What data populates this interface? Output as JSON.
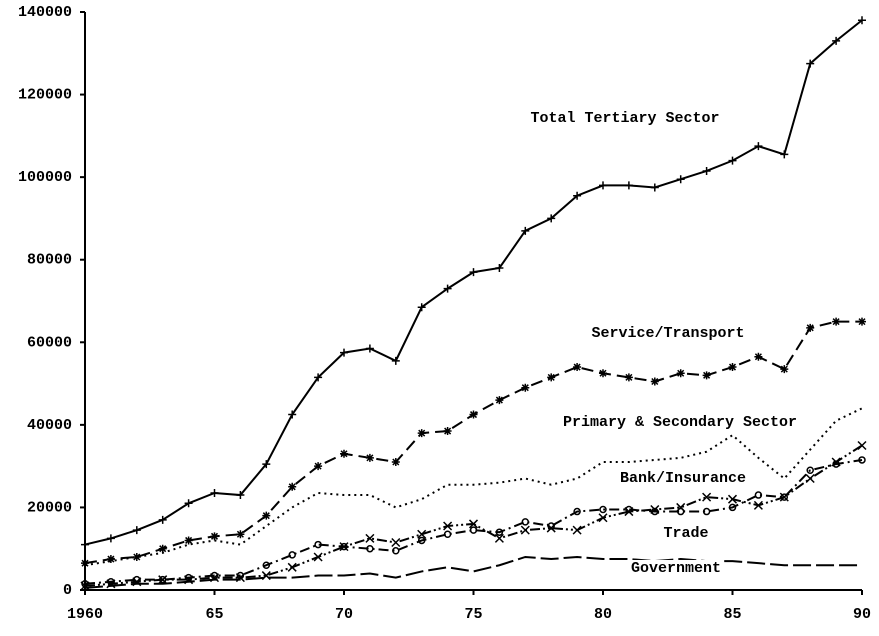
{
  "chart_data": {
    "type": "line",
    "x": [
      1960,
      1961,
      1962,
      1963,
      1964,
      1965,
      1966,
      1967,
      1968,
      1969,
      1970,
      1971,
      1972,
      1973,
      1974,
      1975,
      1976,
      1977,
      1978,
      1979,
      1980,
      1981,
      1982,
      1983,
      1984,
      1985,
      1986,
      1987,
      1988,
      1989,
      1990
    ],
    "series": [
      {
        "name": "Total Tertiary Sector",
        "color": "#000000",
        "style": "solid",
        "marker": "plus",
        "values": [
          11000,
          12500,
          14500,
          17000,
          21000,
          23500,
          23000,
          30500,
          42500,
          51500,
          57500,
          58500,
          55500,
          68500,
          73000,
          77000,
          78000,
          87000,
          90000,
          95500,
          98000,
          98000,
          97500,
          99500,
          101500,
          104000,
          107500,
          105500,
          127500,
          133000,
          138000
        ]
      },
      {
        "name": "Service/Transport",
        "color": "#000000",
        "style": "dashed",
        "marker": "star",
        "values": [
          6500,
          7500,
          8000,
          10000,
          12000,
          13000,
          13500,
          18000,
          25000,
          30000,
          33000,
          32000,
          31000,
          38000,
          38500,
          42500,
          46000,
          49000,
          51500,
          54000,
          52500,
          51500,
          50500,
          52500,
          52000,
          54000,
          56500,
          53500,
          63500,
          65000,
          65000
        ]
      },
      {
        "name": "Primary & Secondary Sector",
        "color": "#000000",
        "style": "dotted",
        "marker": "none",
        "values": [
          6000,
          7000,
          8000,
          9000,
          11000,
          12000,
          11000,
          15500,
          20000,
          23500,
          23000,
          23000,
          20000,
          22000,
          25500,
          25500,
          26000,
          27000,
          25500,
          27000,
          31000,
          31000,
          31500,
          32000,
          33500,
          37500,
          32000,
          27000,
          34000,
          41000,
          44000
        ]
      },
      {
        "name": "Bank/Insurance",
        "color": "#000000",
        "style": "dashdot",
        "marker": "circle",
        "values": [
          1500,
          2000,
          2500,
          2500,
          3000,
          3500,
          3500,
          6000,
          8500,
          11000,
          10500,
          10000,
          9500,
          12000,
          13500,
          14500,
          14000,
          16500,
          15500,
          19000,
          19500,
          19500,
          19000,
          19000,
          19000,
          20000,
          23000,
          22500,
          29000,
          30500,
          31500
        ]
      },
      {
        "name": "Trade",
        "color": "#000000",
        "style": "dashdotdot",
        "marker": "cross",
        "values": [
          1000,
          1500,
          2000,
          2500,
          2500,
          3000,
          3000,
          3500,
          5500,
          8000,
          10500,
          12500,
          11500,
          13500,
          15500,
          16000,
          12500,
          14500,
          15000,
          14500,
          17500,
          19000,
          19500,
          20000,
          22500,
          22000,
          20500,
          22500,
          27000,
          31000,
          35000
        ]
      },
      {
        "name": "Government",
        "color": "#000000",
        "style": "longdash",
        "marker": "none",
        "values": [
          500,
          1000,
          1500,
          1500,
          2000,
          2500,
          2500,
          3000,
          3000,
          3500,
          3500,
          4000,
          3000,
          4500,
          5500,
          4500,
          6000,
          8000,
          7500,
          8000,
          7500,
          7500,
          7000,
          7500,
          7000,
          7000,
          6500,
          6000,
          6000,
          6000,
          6000
        ]
      }
    ],
    "xlim": [
      1960,
      1990
    ],
    "xticks": [
      1960,
      {
        "value": 1965,
        "label": "65"
      },
      {
        "value": 1970,
        "label": "70"
      },
      {
        "value": 1975,
        "label": "75"
      },
      {
        "value": 1980,
        "label": "80"
      },
      {
        "value": 1985,
        "label": "85"
      },
      {
        "value": 1990,
        "label": "90"
      }
    ],
    "ylim": [
      0,
      140000
    ],
    "yticks": [
      0,
      20000,
      40000,
      60000,
      80000,
      100000,
      120000,
      140000
    ]
  }
}
